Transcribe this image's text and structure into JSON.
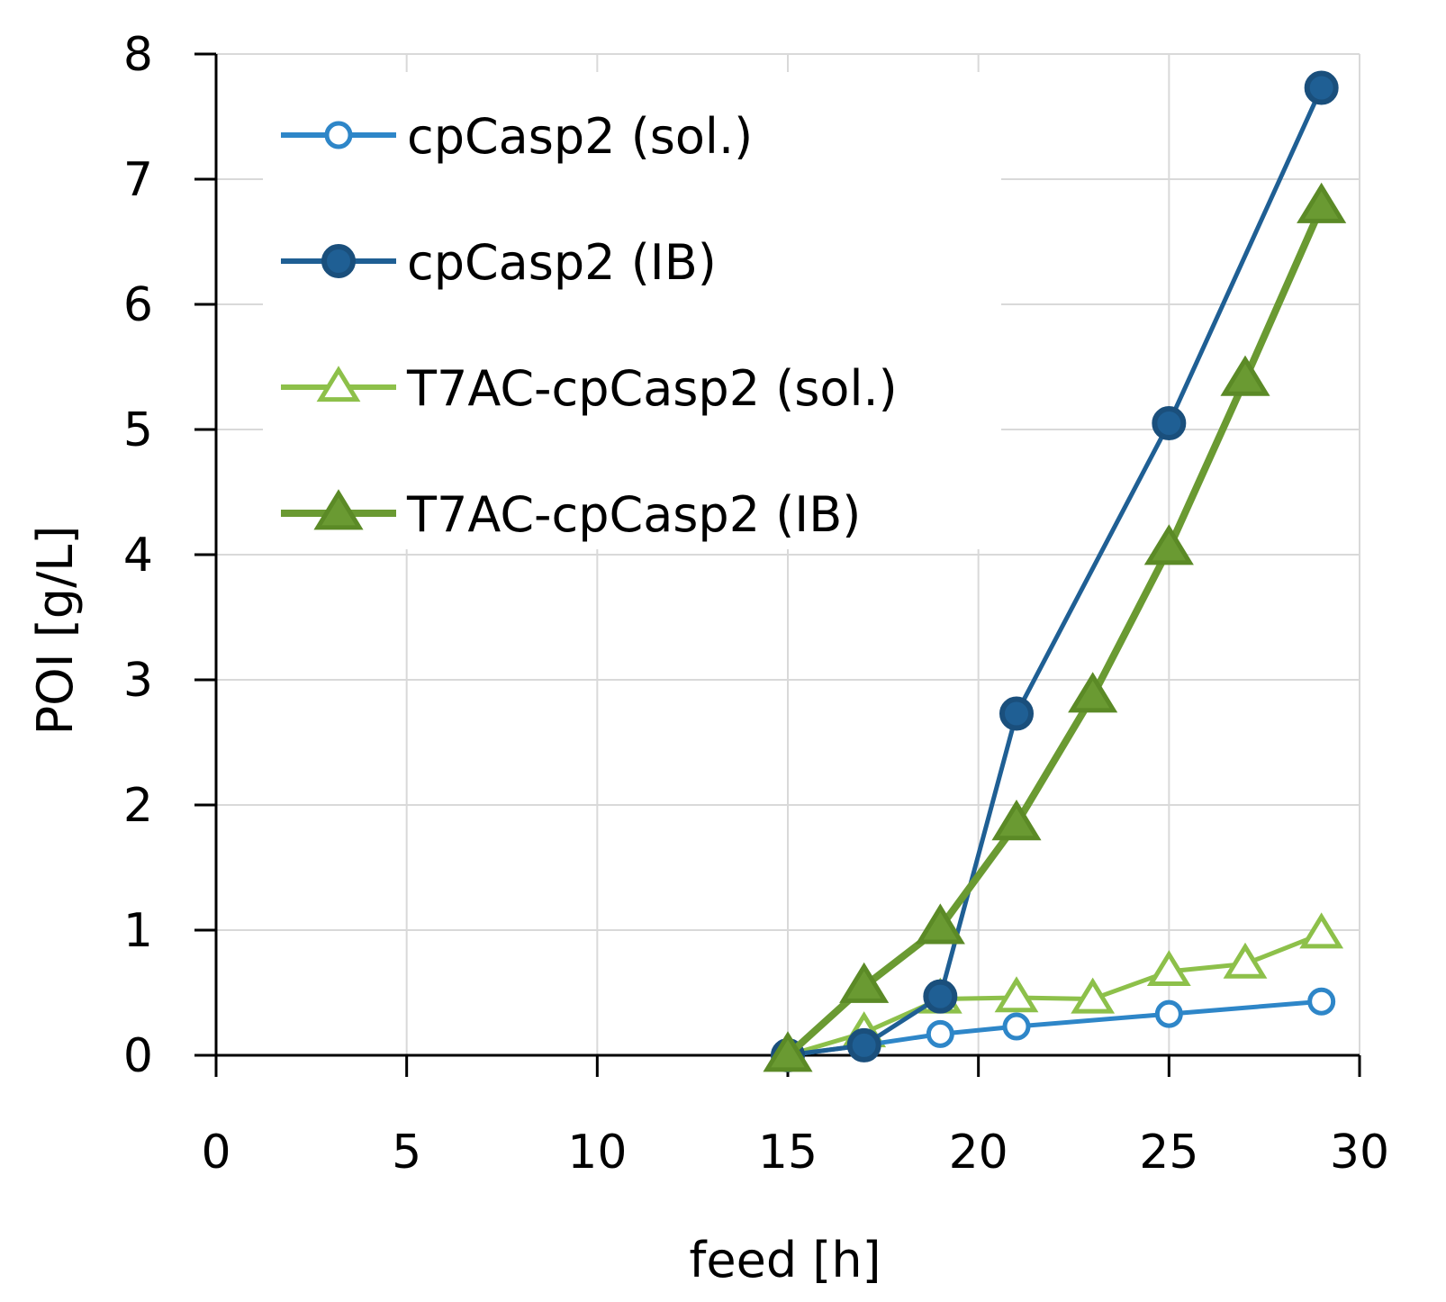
{
  "chart_data": {
    "type": "line",
    "title": "",
    "xlabel": "feed [h]",
    "ylabel": "POI [g/L]",
    "xlim": [
      0,
      30
    ],
    "ylim": [
      0,
      8
    ],
    "xticks": [
      "0",
      "5",
      "10",
      "15",
      "20",
      "25",
      "30"
    ],
    "yticks": [
      "0",
      "1",
      "2",
      "3",
      "4",
      "5",
      "6",
      "7",
      "8"
    ],
    "grid": true,
    "legend_position": "top-left",
    "series": [
      {
        "name": "cpCasp2 (sol.)",
        "color": "#2e86c8",
        "marker": "circle-open",
        "x": [
          15,
          17,
          19,
          21,
          25,
          29
        ],
        "y": [
          0,
          0.08,
          0.17,
          0.23,
          0.33,
          0.43
        ]
      },
      {
        "name": "cpCasp2 (IB)",
        "color": "#1f5f94",
        "marker": "circle-filled",
        "x": [
          15,
          17,
          19,
          21,
          25,
          29
        ],
        "y": [
          0,
          0.08,
          0.47,
          2.73,
          5.05,
          7.73
        ]
      },
      {
        "name": "T7AC-cpCasp2 (sol.)",
        "color": "#8dc04a",
        "marker": "triangle-open",
        "x": [
          15,
          17,
          19,
          21,
          23,
          25,
          27,
          29
        ],
        "y": [
          0,
          0.18,
          0.45,
          0.46,
          0.45,
          0.67,
          0.73,
          0.97
        ]
      },
      {
        "name": "T7AC-cpCasp2 (IB)",
        "color": "#6a9a32",
        "marker": "triangle-filled",
        "x": [
          15,
          17,
          19,
          21,
          23,
          25,
          27,
          29
        ],
        "y": [
          0,
          0.55,
          1.02,
          1.85,
          2.87,
          4.05,
          5.4,
          6.78
        ]
      }
    ]
  }
}
